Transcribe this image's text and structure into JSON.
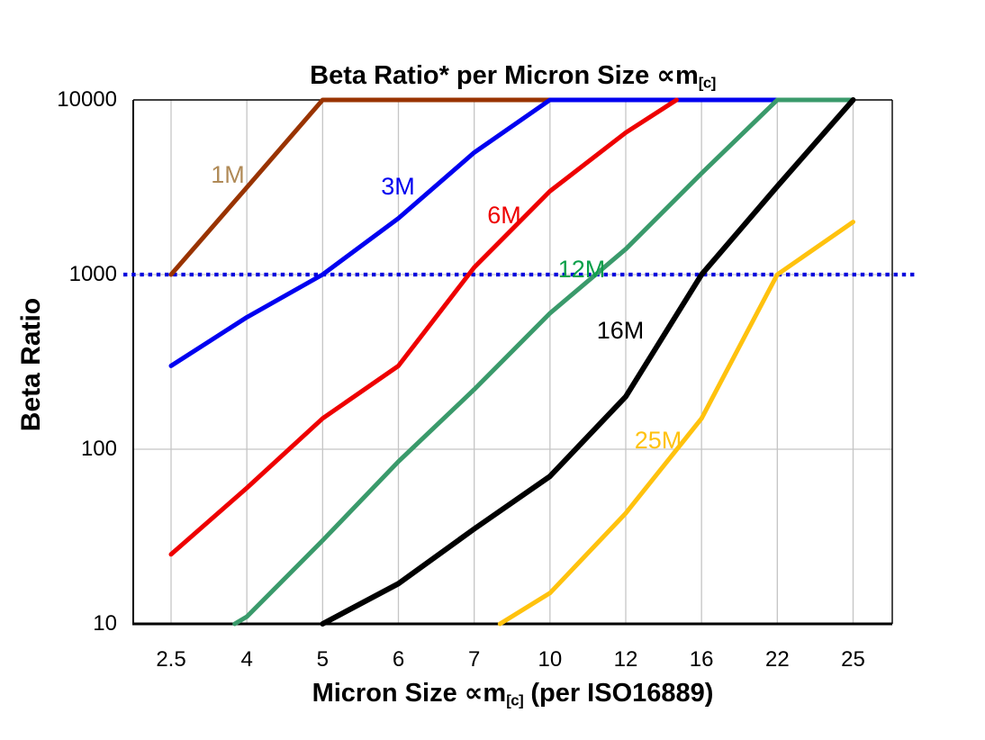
{
  "header": {
    "title_prefix": "Beta Ratio* per Micron Size ",
    "title_symbol": "∝m",
    "title_sub": "[c]"
  },
  "axes": {
    "y_title": "Beta Ratio",
    "x_title_prefix": "Micron Size ",
    "x_title_symbol": "∝m",
    "x_title_sub": "[c]",
    "x_title_suffix": " (per ISO16889)"
  },
  "chart_data": {
    "type": "line",
    "title": "Beta Ratio* per Micron Size ∝m[c]",
    "xlabel": "Micron Size ∝m[c] (per ISO16889)",
    "ylabel": "Beta Ratio",
    "x_categories": [
      "2.5",
      "4",
      "5",
      "6",
      "7",
      "10",
      "12",
      "16",
      "22",
      "25"
    ],
    "micron_sizes": [
      2.5,
      4,
      5,
      6,
      7,
      10,
      12,
      16,
      22,
      25
    ],
    "y_scale": "log",
    "ylim": [
      10,
      10000
    ],
    "y_ticks": [
      {
        "value": 10000,
        "label": "10000"
      },
      {
        "value": 1000,
        "label": "1000"
      },
      {
        "value": 100,
        "label": "100"
      },
      {
        "value": 10,
        "label": "10"
      }
    ],
    "y_gridline_values": [
      1000,
      100
    ],
    "grid_color": "#C5C5C5",
    "axis_color": "#000000",
    "reference_line": {
      "value": 1000,
      "style": "dotted",
      "color": "#0000DD",
      "note": "horizontal dotted blue line at Beta Ratio = 1000, extends slightly past both plot edges"
    },
    "series_note": "points are [category_index, beta_ratio]; category_index 0..9 maps to micron_sizes 2.5,4,5,6,7,10,12,16,22,25; fractional indices mark where a curve enters/leaves the plotted range (clipped at 10 and 10000)",
    "series": [
      {
        "name": "1M",
        "color": "#993300",
        "label_color": "#B08A57",
        "width": 5,
        "points": [
          [
            0,
            1000
          ],
          [
            1,
            3160
          ],
          [
            2,
            10000
          ],
          [
            5,
            10000
          ]
        ]
      },
      {
        "name": "3M",
        "color": "#0000F0",
        "label_color": "#0000F0",
        "width": 5,
        "points": [
          [
            0,
            300
          ],
          [
            1,
            570
          ],
          [
            2,
            1000
          ],
          [
            3,
            2100
          ],
          [
            4,
            5000
          ],
          [
            5,
            10000
          ],
          [
            8,
            10000
          ]
        ]
      },
      {
        "name": "6M",
        "color": "#EE0000",
        "label_color": "#EE0000",
        "width": 5,
        "points": [
          [
            0,
            25
          ],
          [
            1,
            60
          ],
          [
            2,
            150
          ],
          [
            3,
            300
          ],
          [
            4,
            1100
          ],
          [
            5,
            3000
          ],
          [
            6,
            6500
          ],
          [
            6.67,
            10000
          ]
        ]
      },
      {
        "name": "12M",
        "color": "#3A9A6B",
        "label_color": "#0AA04A",
        "width": 5,
        "points": [
          [
            0.84,
            10
          ],
          [
            1,
            11
          ],
          [
            2,
            30
          ],
          [
            3,
            85
          ],
          [
            4,
            220
          ],
          [
            5,
            600
          ],
          [
            6,
            1400
          ],
          [
            7,
            3800
          ],
          [
            8,
            10000
          ],
          [
            9,
            10000
          ]
        ]
      },
      {
        "name": "16M",
        "color": "#000000",
        "label_color": "#000000",
        "width": 6,
        "points": [
          [
            2,
            10
          ],
          [
            3,
            17
          ],
          [
            4,
            35
          ],
          [
            5,
            70
          ],
          [
            6,
            200
          ],
          [
            7,
            1000
          ],
          [
            8,
            3200
          ],
          [
            9,
            10000
          ]
        ]
      },
      {
        "name": "25M",
        "color": "#FFC20E",
        "label_color": "#FFC20E",
        "width": 5,
        "points": [
          [
            4.34,
            10
          ],
          [
            5,
            15
          ],
          [
            6,
            43
          ],
          [
            7,
            150
          ],
          [
            8,
            1000
          ],
          [
            9,
            2000
          ]
        ]
      }
    ]
  }
}
